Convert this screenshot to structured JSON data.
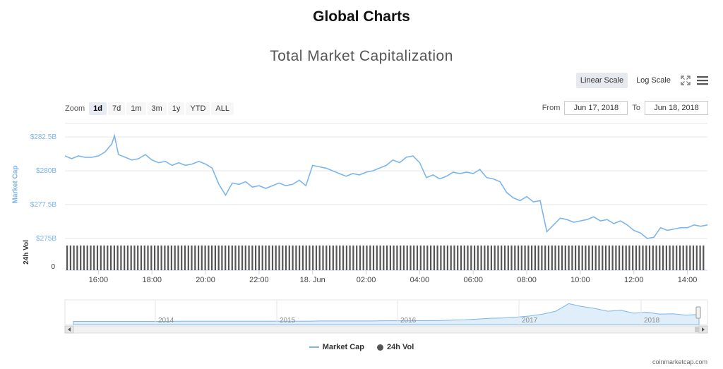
{
  "page_title": "Global Charts",
  "toolbar": {
    "linear_scale_label": "Linear Scale",
    "log_scale_label": "Log Scale"
  },
  "zoom": {
    "label": "Zoom",
    "buttons": [
      "1d",
      "7d",
      "1m",
      "3m",
      "1y",
      "YTD",
      "ALL"
    ],
    "active": "1d"
  },
  "range": {
    "from_label": "From",
    "from_value": "Jun 17, 2018",
    "to_label": "To",
    "to_value": "Jun 18, 2018"
  },
  "legend": {
    "market_cap": "Market Cap",
    "volume": "24h Vol"
  },
  "credits": "coinmarketcap.com",
  "colors": {
    "market_cap_line": "#7cb5ec",
    "volume_bars": "#555555",
    "navigator_fill": "#e0eef9"
  },
  "chart_data": {
    "type": "line",
    "title": "Total Market Capitalization",
    "ylabel": "Market Cap",
    "y2label": "24h\nVol",
    "y_ticks": [
      "$282.5B",
      "$280B",
      "$277.5B",
      "$275B"
    ],
    "y_tick_values": [
      282.5,
      280,
      277.5,
      275
    ],
    "ylim": [
      275,
      283.5
    ],
    "vol_tick": "0",
    "x_ticks": [
      "16:00",
      "18:00",
      "20:00",
      "22:00",
      "18. Jun",
      "02:00",
      "04:00",
      "06:00",
      "08:00",
      "10:00",
      "12:00",
      "14:00"
    ],
    "x_tick_hours": [
      16,
      18,
      20,
      22,
      24,
      26,
      28,
      30,
      32,
      34,
      36,
      38
    ],
    "x_range_hours": [
      14.75,
      38.75
    ],
    "series": [
      {
        "name": "Market Cap",
        "x_hours": [
          14.75,
          15.0,
          15.25,
          15.5,
          15.75,
          16.0,
          16.25,
          16.5,
          16.6,
          16.75,
          17.0,
          17.25,
          17.5,
          17.75,
          18.0,
          18.25,
          18.5,
          18.75,
          19.0,
          19.25,
          19.5,
          19.75,
          20.0,
          20.25,
          20.5,
          20.75,
          21.0,
          21.25,
          21.5,
          21.75,
          22.0,
          22.25,
          22.5,
          22.75,
          23.0,
          23.25,
          23.5,
          23.75,
          24.0,
          24.25,
          24.5,
          24.75,
          25.0,
          25.25,
          25.5,
          25.75,
          26.0,
          26.25,
          26.5,
          26.75,
          27.0,
          27.25,
          27.5,
          27.75,
          28.0,
          28.25,
          28.5,
          28.75,
          29.0,
          29.25,
          29.5,
          29.75,
          30.0,
          30.25,
          30.5,
          30.75,
          31.0,
          31.25,
          31.5,
          31.75,
          32.0,
          32.25,
          32.5,
          32.75,
          33.0,
          33.25,
          33.5,
          33.75,
          34.0,
          34.25,
          34.5,
          34.75,
          35.0,
          35.25,
          35.5,
          35.75,
          36.0,
          36.25,
          36.5,
          36.75,
          37.0,
          37.25,
          37.5,
          37.75,
          38.0,
          38.25,
          38.5,
          38.75
        ],
        "values": [
          281.1,
          280.9,
          281.1,
          281.0,
          281.0,
          281.1,
          281.4,
          282.0,
          282.6,
          281.2,
          281.0,
          280.8,
          280.9,
          281.2,
          280.8,
          280.6,
          280.7,
          280.4,
          280.6,
          280.4,
          280.5,
          280.7,
          280.5,
          280.2,
          279.0,
          278.2,
          279.1,
          279.0,
          279.2,
          278.8,
          278.9,
          278.7,
          278.9,
          279.1,
          278.9,
          279.0,
          279.3,
          278.9,
          280.4,
          280.3,
          280.2,
          280.0,
          279.8,
          279.6,
          279.8,
          279.7,
          279.9,
          280.0,
          280.2,
          280.4,
          280.8,
          280.6,
          281.0,
          281.1,
          280.6,
          279.5,
          279.7,
          279.4,
          279.6,
          279.9,
          279.8,
          279.9,
          279.8,
          280.1,
          279.5,
          279.4,
          279.2,
          278.4,
          278.0,
          277.8,
          278.1,
          277.7,
          277.8,
          275.5,
          276.0,
          276.5,
          276.4,
          276.2,
          276.3,
          276.4,
          276.6,
          276.3,
          276.4,
          276.1,
          276.3,
          276.0,
          275.6,
          275.4,
          275.0,
          275.1,
          275.8,
          275.6,
          275.7,
          275.8,
          275.8,
          276.0,
          275.9,
          276.0
        ]
      },
      {
        "name": "24h Vol",
        "values": []
      }
    ],
    "navigator": {
      "x_ticks": [
        "2014",
        "2015",
        "2016",
        "2017",
        "2018"
      ],
      "series": [
        0.02,
        0.02,
        0.02,
        0.02,
        0.02,
        0.02,
        0.02,
        0.02,
        0.03,
        0.03,
        0.03,
        0.03,
        0.03,
        0.03,
        0.03,
        0.03,
        0.03,
        0.03,
        0.03,
        0.04,
        0.04,
        0.04,
        0.04,
        0.04,
        0.05,
        0.05,
        0.05,
        0.06,
        0.06,
        0.08,
        0.1,
        0.14,
        0.18,
        0.2,
        0.24,
        0.3,
        0.4,
        0.55,
        0.95,
        0.8,
        0.7,
        0.55,
        0.6,
        0.45,
        0.5,
        0.4,
        0.42,
        0.35,
        0.38
      ]
    }
  }
}
